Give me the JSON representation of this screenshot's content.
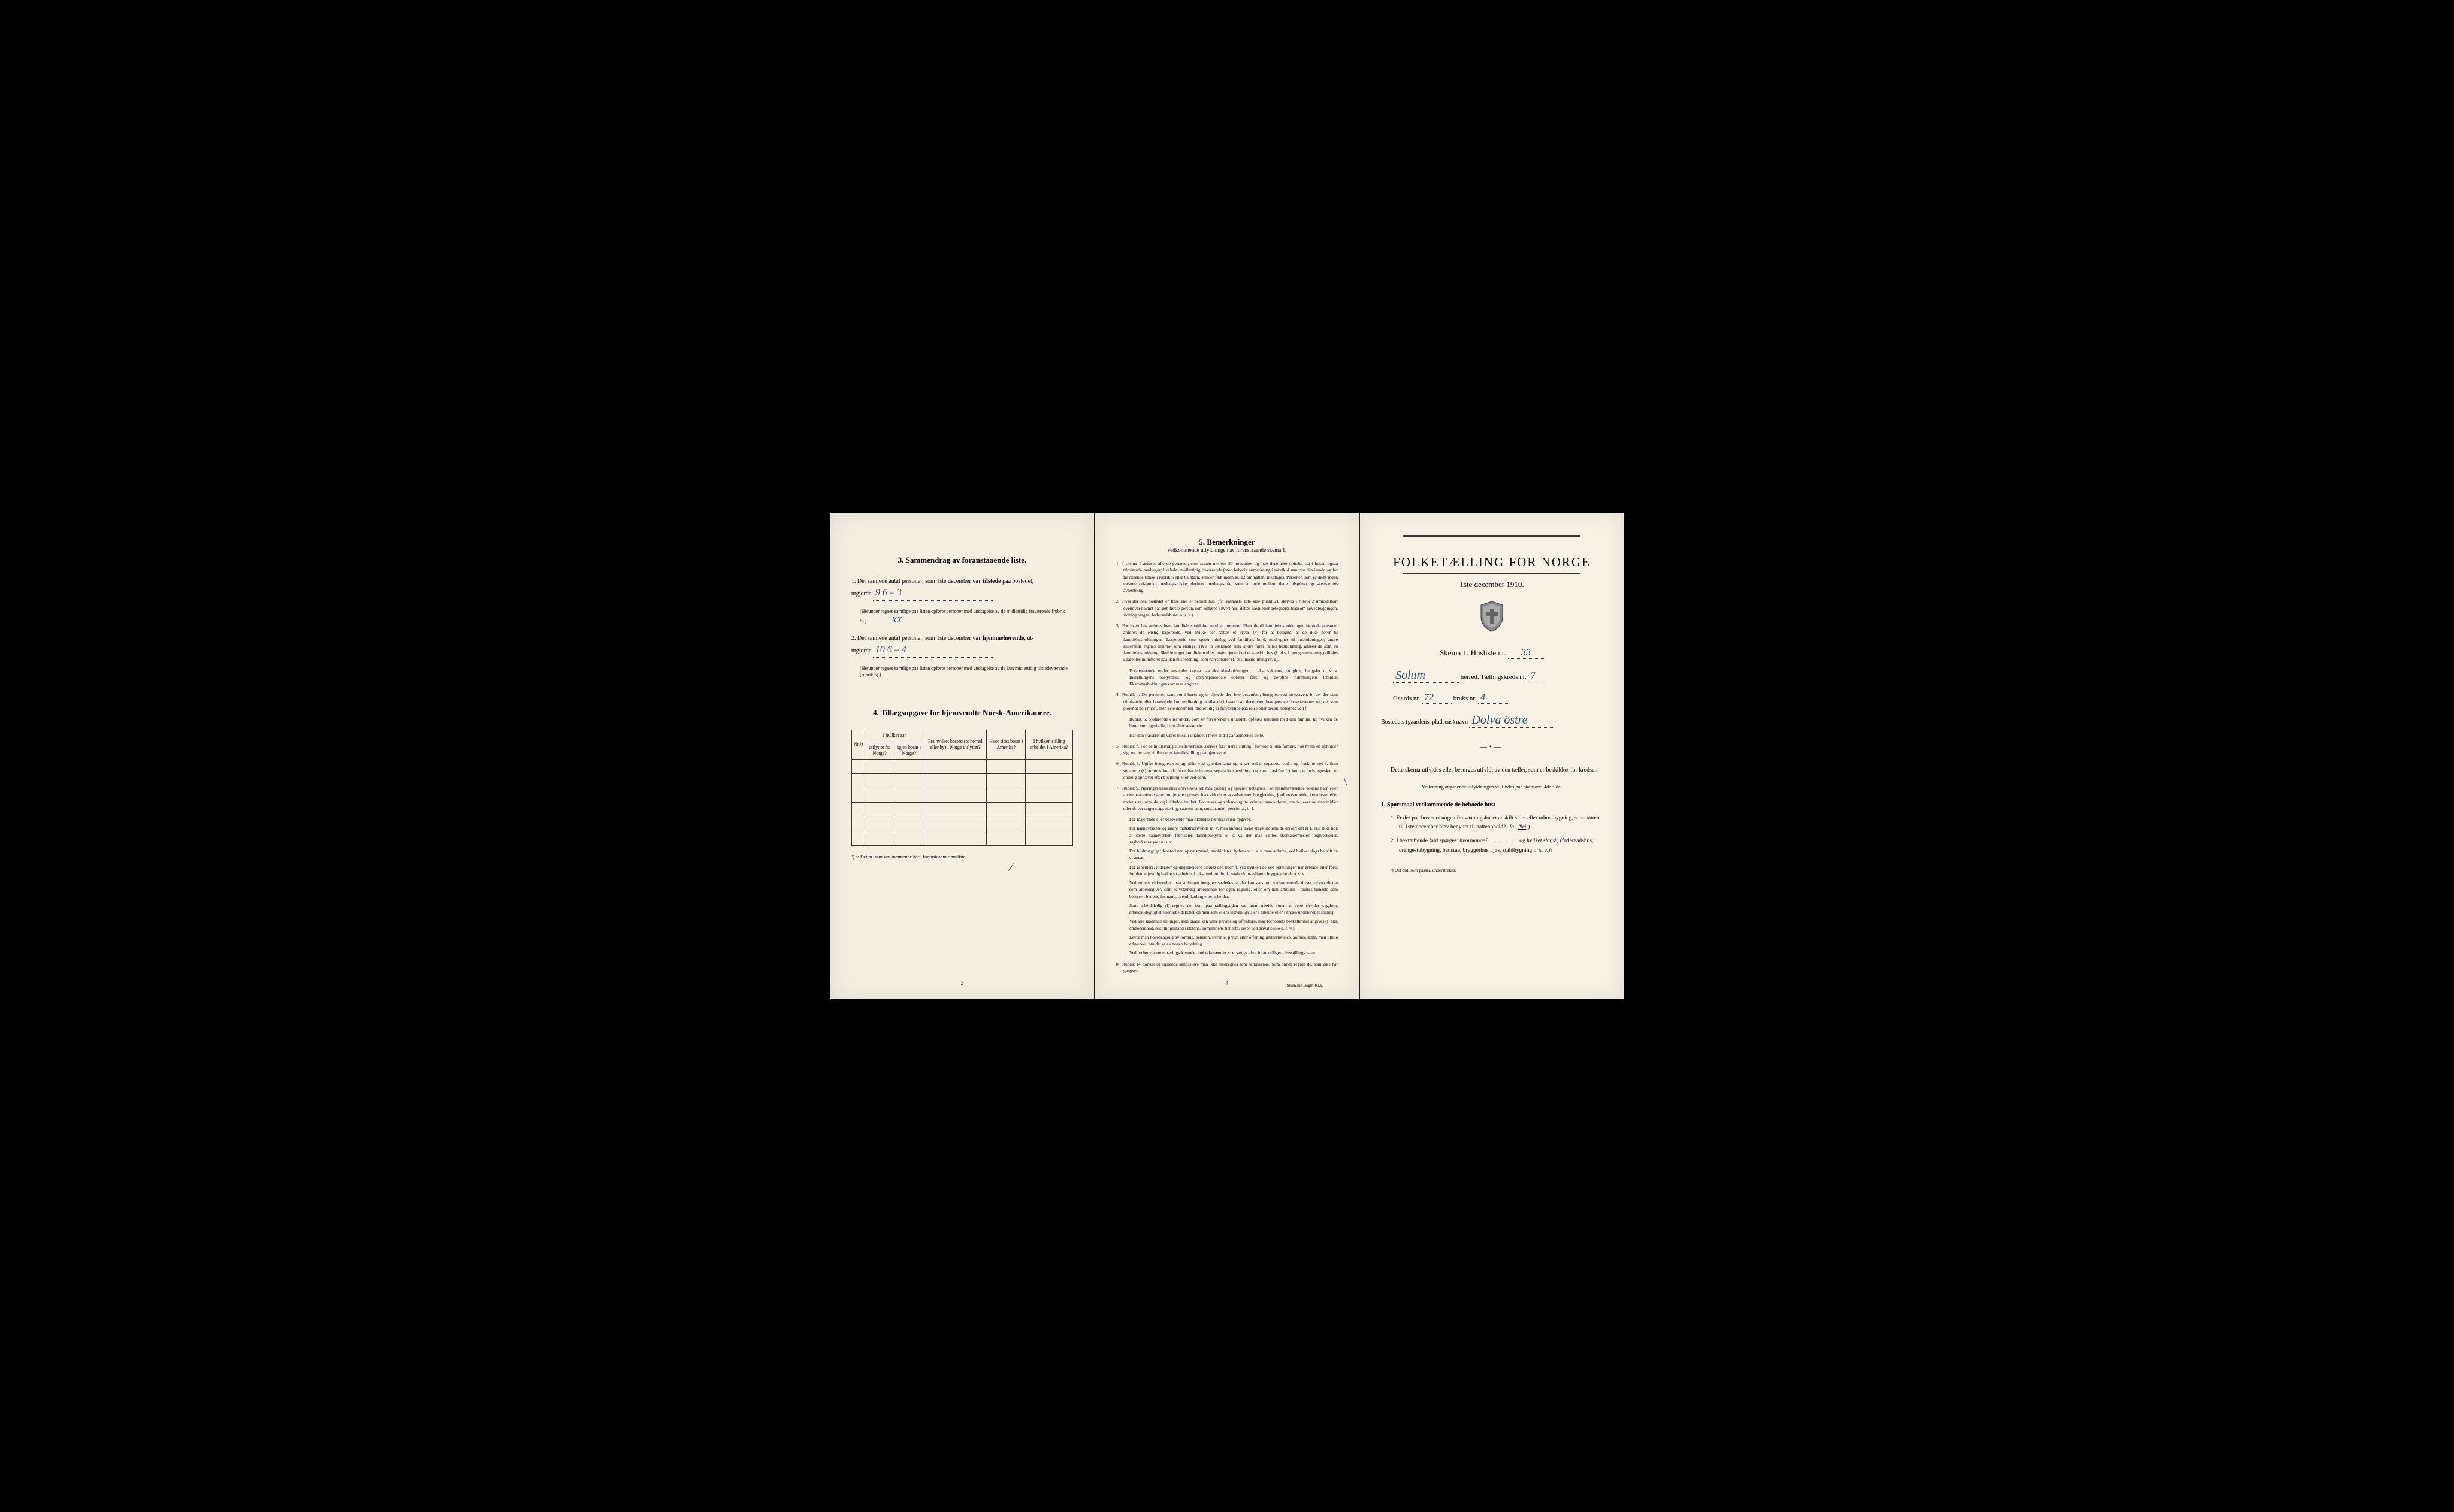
{
  "colors": {
    "paper_left": "#f4efe0",
    "paper_middle": "#f6f1e3",
    "paper_right": "#f7f2e5",
    "ink": "#2a2a2a",
    "handwriting": "#2a4a6a",
    "background": "#000000"
  },
  "left": {
    "section3_title": "3.   Sammendrag av foranstaaende liste.",
    "item1_prefix": "1.  Det samlede antal personer, som 1ste december",
    "item1_bold": "var tilstede",
    "item1_suffix": "paa bostedet,",
    "utgjorde_label": "utgjorde",
    "item1_handwritten": "9 6 – 3",
    "item1_note": "(Herunder regnes samtlige paa listen opførte personer med undtagelse av de midlertidig fraværende [rubrik 6].)",
    "item1_xx": "XX",
    "item2_prefix": "2.  Det samlede antal personer, som 1ste december",
    "item2_bold": "var hjemmehørende",
    "item2_suffix": ", ut-",
    "item2_handwritten": "10 6 – 4",
    "item2_note": "(Herunder regnes samtlige paa listen opførte personer med undtagelse av de kun midlertidig tilstedeværende [rubrik 5].)",
    "section4_title": "4.   Tillægsopgave for hjemvendte Norsk-Amerikanere.",
    "table": {
      "col1": "Nr.¹)",
      "col2_top": "I hvilket aar",
      "col2a": "utflyttet fra Norge?",
      "col2b": "igjen bosat i Norge?",
      "col3": "Fra hvilket bosted (ɔ: herred eller by) i Norge utflyttet?",
      "col4": "Hvor sidst bosat i Amerika?",
      "col5": "I hvilken stilling arbeidet i Amerika?",
      "blank_rows": 6
    },
    "footnote": "¹) ɔ: Det nr. som vedkommende har i foranstaaende husliste.",
    "page_num": "3"
  },
  "middle": {
    "title": "5.   Bemerkninger",
    "subtitle": "vedkommende utfyldningen av foranstaaende skema 1.",
    "remarks": [
      {
        "n": "1.",
        "text": "I skema 1 anføres alle de personer, som natten mellem 30 november og 1ste december opholdt sig i huset; ogsaa tilreisende medtages; likeledes midlertidig fraværende (med behørig anmerkning i rubrik 4 samt for tilreisende og for fraværende tillike i rubrik 5 eller 6). Barn, som er født inden kl. 12 om natten, medtages. Personer, som er døde inden nævnte tidspunkt, medtages ikke; derimot medtages de, som er døde mellem dette tidspunkt og skemaernes avhentning."
      },
      {
        "n": "2.",
        "text": "Hvis der paa bostedet er flere end ét beboet hus (jfr. skemaets 1ste side punkt 2), skrives i rubrik 2 umiddelbart ovenover navnet paa den første person, som opføres i hvert hus, dettes navn eller betegnelse (saasom hovedbygningen, sidebygningen, føderaadshuset o. s. v.)."
      },
      {
        "n": "3.",
        "text": "For hvert hus anføres hver familiehusholdning med sit nummer. Efter de til familiehusholdningen hørende personer anføres de enslig losjerende, ved hvilke der sættes et kryds (×) for at betegne, at de ikke hører til familiehusholdningen. Losjerende som spiser middag ved familiens bord, medregnes til husholdningen; andre losjerende regnes derimot som enslige. Hvis to søskende eller andre fører fælles husholdning, ansees de som en familiehusholdning. Skulde noget familielem eller nogen tjener bo i et særskilt hus (f. eks. i drengestubygning) tilføies i parentes nummeret paa den husholdning, som han tilhører (f. eks. husholdning nr. 1)."
      },
      {
        "n": "",
        "text": "Foranstaaende regler anvendes ogsaa paa ekstrahusholdninger, f. eks. sykehus, fattighus, fængsler o. s. v. Indretningens bestyrelses- og opsynspersonale opføres først og derefter indretningens lemmer. Ekstrahusholdningens art maa angives."
      },
      {
        "n": "4.",
        "text": "Rubrik 4. De personer, som bor i huset og er tilstede der 1ste december, betegnes ved bokstaven: b; de, der som tilreisende eller besøkende kun midlertidig er tilstede i huset 1ste december, betegnes ved bokstaverne: mt; de, som pleier at bo i huset, men 1ste december midlertidig er fraværende paa reise eller besøk, betegnes ved f."
      },
      {
        "n": "",
        "text": "Rubrik 6. Sjøfarende eller andre, som er fraværende i utlandet, opføres sammen med den familie, til hvilken de hører som egtefælle, barn eller søskende."
      },
      {
        "n": "",
        "text": "Har den fraværende været bosat i utlandet i mere end 1 aar anmerkes dette."
      },
      {
        "n": "5.",
        "text": "Rubrik 7. For de midlertidig tilstedeværende skrives først deres stilling i forhold til den familie, hos hvem de opholder sig, og dernæst tillike deres familiestilling paa hjemstedet."
      },
      {
        "n": "6.",
        "text": "Rubrik 8. Ugifte betegnes ved ug, gifte ved g, enkemænd og enker ved e, separerte ved s og fraskilte ved f. Som separerte (s) anføres kun de, som har erhvervet separationsbevilling, og som fraskilte (f) kun de, hvis egteskap er endelig ophævet efter bevilling eller ved dom."
      },
      {
        "n": "7.",
        "text": "Rubrik 9. Næringsveiens eller erhvervets art maa tydelig og specielt betegnes. For hjemmeværende voksne barn eller andre paarørende samt for tjenere oplyses, hvorvidt de er sysselsat med husgjerning, jordbruksarbeide, kreaturstel eller andet slags arbeide, og i tilfælde hvilket. For enker og voksne ugifte kvinder maa anføres, om de lever av sine midler eller driver nogenslags næring, saasom søm, smaahandel, pensionat, o. l."
      },
      {
        "n": "",
        "text": "For losjerende eller besøkende maa likeledes næringsveien opgives."
      },
      {
        "n": "",
        "text": "For haandverkere og andre industridrivende m. v. maa anføres, hvad slags industri de driver; det er f. eks. ikke nok at sætte haandverker, fabrikeier, fabrikbestyrer o. s. v.; der maa sættes skomakermester, teglverkseier, sagbruksbestyrer o. s. v."
      },
      {
        "n": "",
        "text": "For fuldmægtiger, kontorister, opsynsmænd, maskinister, fyrbøtere o. s. v. maa anføres, ved hvilket slags bedrift de er ansat."
      },
      {
        "n": "",
        "text": "For arbeidere, inderster og dagarbeidere tilføies den bedrift, ved hvilken de ved optællingen har arbeide eller forut for denne jevnlig hadde sit arbeide, f. eks. ved jordbruk, sagbruk, træsliperi, bryggearbeide o. s. v."
      },
      {
        "n": "",
        "text": "Ved enhver virksomhet maa stillingen betegnes saaledes, at det kan sees, om vedkommende driver virksomheten som arbeidsgiver, som selvstændig arbeidende for egen regning, eller om han arbeider i andres tjeneste som bestyrer, betjent, formand, svend, lærling eller arbeider."
      },
      {
        "n": "",
        "text": "Som arbeidsledig (l) regnes de, som paa tællingstiden var uten arbeide (uten at dette skyldes sygdom, arbeidsudygtighet eller arbeidskonflikt) men som ellers sedvanligvis er i arbeide eller i anden underordnet stilling."
      },
      {
        "n": "",
        "text": "Ved alle saadanne stillinger, som baade kan være private og offentlige, maa forholdets beskaffenhet angives (f. eks. embedsmand, bestillingsmand i statens, kommunens tjeneste, lærer ved privat skole o. s. v.)."
      },
      {
        "n": "",
        "text": "Lever man hovedsagelig av formue, pension, livrente, privat eller offentlig understøttelse, anføres dette, men tillike erhvervet, om det er av nogen betydning."
      },
      {
        "n": "",
        "text": "Ved forhenværende næringsdrivende, embedsmænd o. s. v. sættes «fv» foran tidligere livsstillings navn."
      },
      {
        "n": "8.",
        "text": "Rubrik 14. Sinker og lignende aandssløve maa ikke medregnes som aandssvake. Som blinde regnes de, som ikke har gangsyn."
      }
    ],
    "page_num": "4",
    "printer": "Steen'ske Bogtr.  Kr.a."
  },
  "right": {
    "title": "FOLKETÆLLING FOR NORGE",
    "date": "1ste december 1910.",
    "skema_label": "Skema 1.   Husliste nr.",
    "husliste_nr": "33",
    "herred_hand": "Solum",
    "herred_label": "herred.   Tællingskreds nr.",
    "kreds_nr": "7",
    "gaards_label": "Gaards nr.",
    "gaards_nr": "72",
    "bruks_label": "bruks nr.",
    "bruks_nr": "4",
    "bosted_label": "Bostedets (gaardens, pladsens) navn",
    "bosted_hand": "Dolva   östre",
    "instruction": "Dette skema utfyldes eller besørges utfyldt av den tæller, som er beskikket for kredsen.",
    "instruction_small": "Veiledning angaaende utfyldningen vil findes paa skemaets 4de side.",
    "q_section": "1. Spørsmaal vedkommende de beboede hus:",
    "q1": "1.  Er der paa bostedet nogen fra vaaningshuset adskilt side- eller uthus-bygning, som natten til 1ste december blev benyttet til natteophold?",
    "q1_ja": "Ja.",
    "q1_nei": "Nei",
    "q1_sup": "¹).",
    "q2": "2.  I bekræftende fald spørges:",
    "q2_em1": "hvormange?",
    "q2_mid": "og",
    "q2_em2": "hvilket slags",
    "q2_sup": "¹)",
    "q2_suffix": "(føderaadshus, drengestubygning, badstue, bryggerhus, fjøs, staldbygning o. s. v.)?",
    "footnote": "¹)  Det ord, som passer, understrekes."
  }
}
